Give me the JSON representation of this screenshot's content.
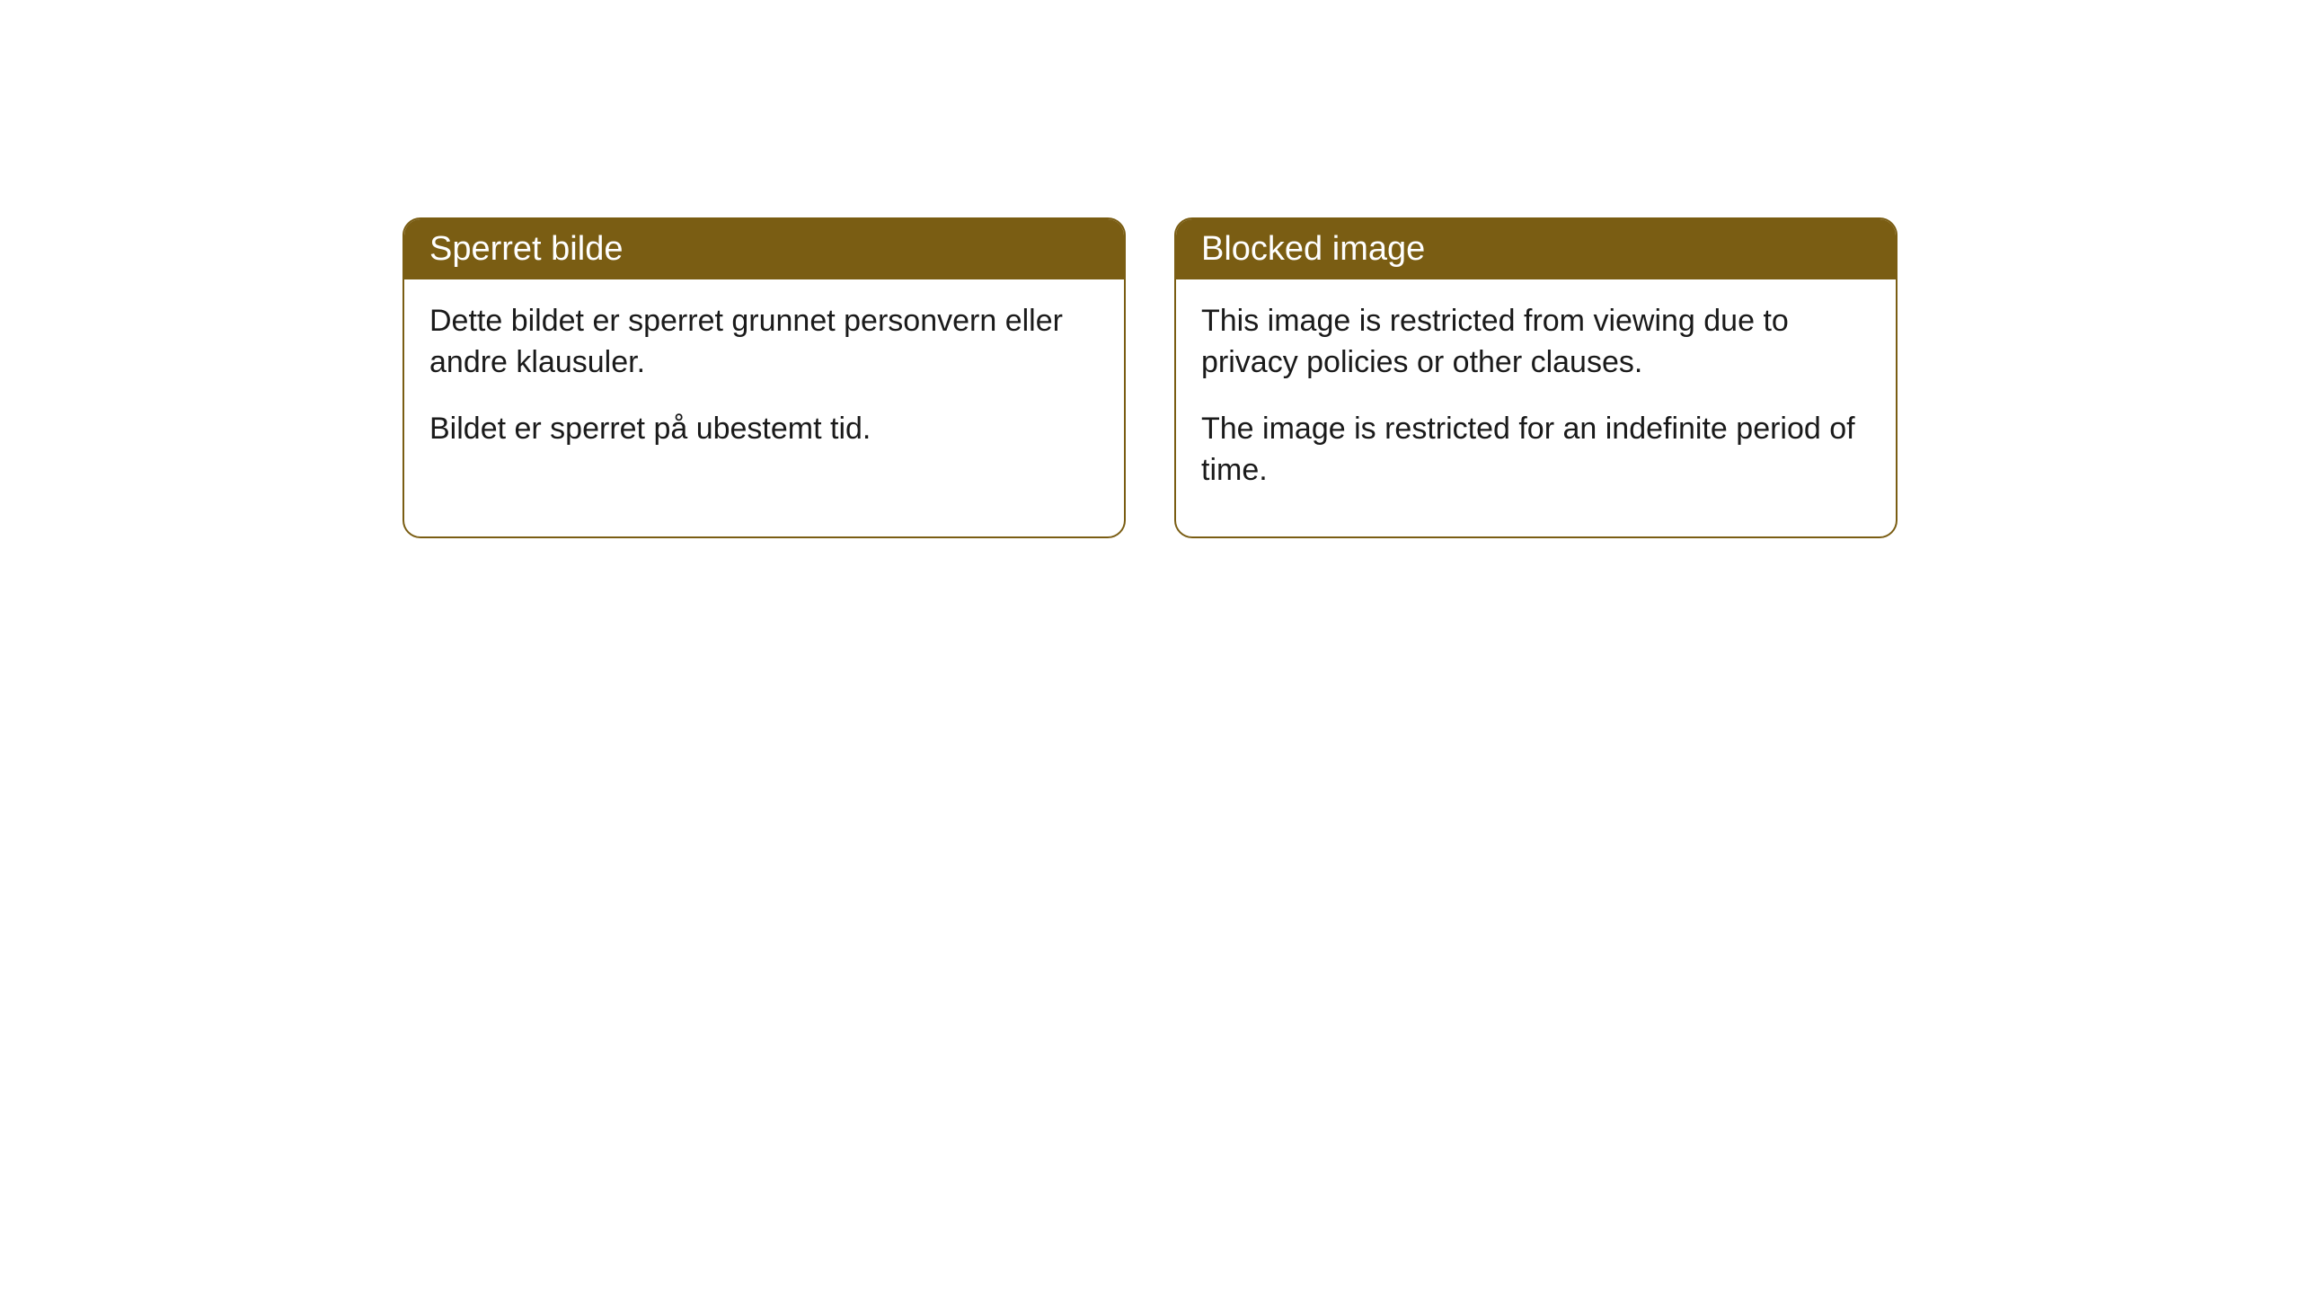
{
  "layout": {
    "background_color": "#ffffff",
    "card_border_color": "#7a5d13",
    "card_header_bg": "#7a5d13",
    "card_header_text_color": "#ffffff",
    "card_body_text_color": "#1a1a1a",
    "card_border_radius": 20,
    "header_font_size": 38,
    "body_font_size": 34
  },
  "cards": [
    {
      "title": "Sperret bilde",
      "paragraph1": "Dette bildet er sperret grunnet personvern eller andre klausuler.",
      "paragraph2": "Bildet er sperret på ubestemt tid."
    },
    {
      "title": "Blocked image",
      "paragraph1": "This image is restricted from viewing due to privacy policies or other clauses.",
      "paragraph2": "The image is restricted for an indefinite period of time."
    }
  ]
}
